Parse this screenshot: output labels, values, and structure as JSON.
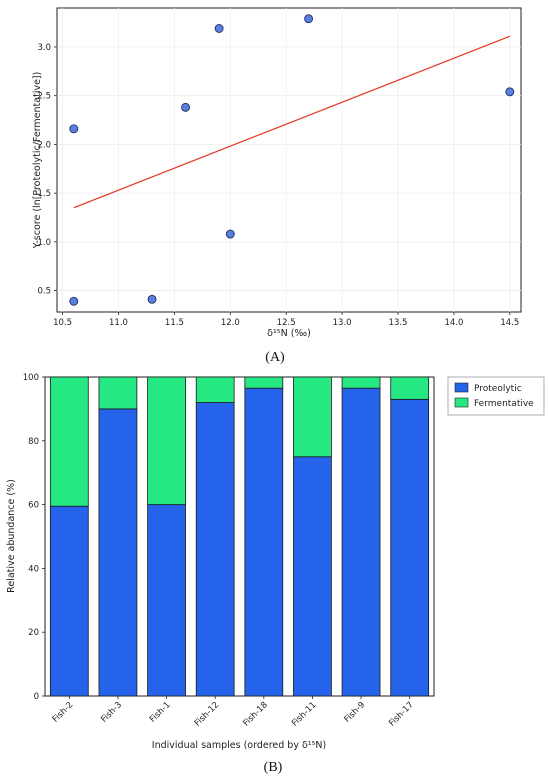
{
  "chart_data": [
    {
      "panel": "(A)",
      "type": "scatter",
      "xlabel": "δ¹⁵N (‰)",
      "ylabel": "Y-score (ln[Proteolytic/Fermentative])",
      "xlim": [
        10.45,
        14.6
      ],
      "ylim": [
        0.28,
        3.4
      ],
      "xticks": [
        "10.5",
        "11.0",
        "11.5",
        "12.0",
        "12.5",
        "13.0",
        "13.5",
        "14.0",
        "14.5"
      ],
      "yticks": [
        "0.5",
        "1.0",
        "1.5",
        "2.0",
        "2.5",
        "3.0"
      ],
      "grid": true,
      "points": [
        {
          "x": 10.6,
          "y": 2.16
        },
        {
          "x": 10.6,
          "y": 0.39
        },
        {
          "x": 11.3,
          "y": 0.41
        },
        {
          "x": 11.6,
          "y": 2.38
        },
        {
          "x": 11.9,
          "y": 3.19
        },
        {
          "x": 12.0,
          "y": 1.08
        },
        {
          "x": 12.7,
          "y": 3.29
        },
        {
          "x": 14.5,
          "y": 2.54
        }
      ],
      "trendline": {
        "x": [
          10.6,
          14.5
        ],
        "y": [
          1.35,
          3.11
        ]
      },
      "colors": {
        "points": "#5b7fe0",
        "point_edge": "#1e2f66",
        "trendline": "#e8402e"
      }
    },
    {
      "panel": "(B)",
      "type": "bar",
      "stacked": true,
      "xlabel": "Individual samples (ordered by δ¹⁵N)",
      "ylabel": "Relative abundance (%)",
      "ylim": [
        0,
        100
      ],
      "yticks": [
        "0",
        "20",
        "40",
        "60",
        "80",
        "100"
      ],
      "categories": [
        "Fish-2",
        "Fish-3",
        "Fish-1",
        "Fish-12",
        "Fish-18",
        "Fish-11",
        "Fish-9",
        "Fish-17"
      ],
      "series": [
        {
          "name": "Proteolytic",
          "color": "#2563eb",
          "values": [
            59.5,
            90.0,
            60.0,
            92.0,
            96.5,
            75.0,
            96.5,
            93.0
          ]
        },
        {
          "name": "Fermentative",
          "color": "#26e883",
          "values": [
            40.5,
            10.0,
            40.0,
            8.0,
            3.5,
            25.0,
            3.5,
            7.0
          ]
        }
      ],
      "legend": "top-right"
    }
  ]
}
